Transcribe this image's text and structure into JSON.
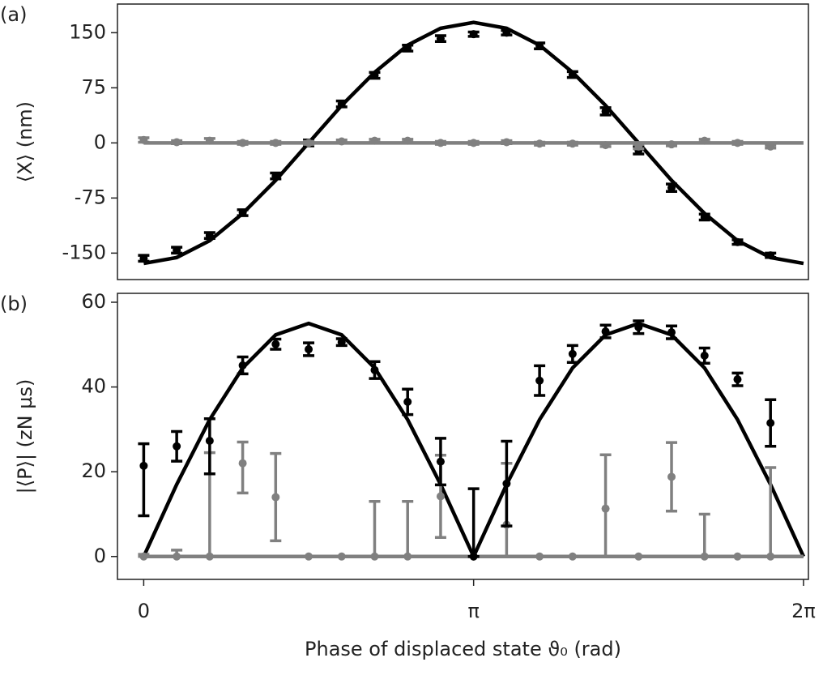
{
  "chart_data": [
    {
      "type": "errorbar",
      "panel_label": "(a)",
      "ylabel": "⟨X⟩ (nm)",
      "xlim": [
        -0.25,
        6.33
      ],
      "ylim": [
        -186,
        189
      ],
      "yticks": [
        150,
        75,
        0,
        -75,
        -150
      ],
      "series": [
        {
          "style": "line",
          "color": "#000000",
          "x": [
            0,
            0.3142,
            0.6283,
            0.9425,
            1.2566,
            1.5708,
            1.885,
            2.1991,
            2.5133,
            2.8274,
            3.1416,
            3.4558,
            3.7699,
            4.0841,
            4.3982,
            4.7124,
            5.0265,
            5.3407,
            5.6549,
            5.969,
            6.2832
          ],
          "values": [
            -164,
            -156,
            -133,
            -96,
            -51,
            0,
            51,
            96,
            133,
            156,
            164,
            156,
            133,
            96,
            51,
            0,
            -51,
            -96,
            -133,
            -156,
            -164
          ]
        },
        {
          "style": "line",
          "color": "#808080",
          "x": [
            0,
            6.2832
          ],
          "values": [
            0,
            0
          ]
        },
        {
          "style": "points",
          "color": "#000000",
          "x": [
            0,
            0.3142,
            0.6283,
            0.9425,
            1.2566,
            1.5708,
            1.885,
            2.1991,
            2.5133,
            2.8274,
            3.1416,
            3.4558,
            3.7699,
            4.0841,
            4.3982,
            4.7124,
            5.0265,
            5.3407,
            5.6549,
            5.969
          ],
          "values": [
            -157,
            -146,
            -126,
            -95,
            -45,
            0,
            53,
            92,
            129,
            142,
            148,
            150,
            132,
            93,
            43,
            -10,
            -61,
            -101,
            -135,
            -153
          ],
          "err_low": [
            4,
            4,
            4,
            4,
            4,
            4,
            4,
            4,
            4,
            4,
            3,
            3,
            4,
            4,
            5,
            5,
            5,
            4,
            3,
            3
          ],
          "err_high": [
            4,
            4,
            4,
            4,
            4,
            4,
            4,
            4,
            4,
            4,
            3,
            3,
            4,
            4,
            5,
            5,
            5,
            4,
            3,
            3
          ]
        },
        {
          "style": "points",
          "color": "#808080",
          "x": [
            0,
            0.3142,
            0.6283,
            0.9425,
            1.2566,
            1.5708,
            1.885,
            2.1991,
            2.5133,
            2.8274,
            3.1416,
            3.4558,
            3.7699,
            4.0841,
            4.3982,
            4.7124,
            5.0265,
            5.3407,
            5.6549,
            5.969
          ],
          "values": [
            4,
            1,
            3,
            0,
            0,
            0,
            2,
            3,
            3,
            0,
            0,
            1,
            -1,
            -1,
            -3,
            -5,
            -2,
            3,
            0,
            -5
          ],
          "err_low": [
            3,
            2,
            3,
            2,
            2,
            2,
            2,
            2,
            2,
            2,
            2,
            2,
            2,
            2,
            2,
            3,
            2,
            2,
            2,
            2
          ],
          "err_high": [
            3,
            2,
            3,
            2,
            2,
            2,
            2,
            2,
            2,
            2,
            2,
            2,
            2,
            2,
            2,
            3,
            2,
            2,
            2,
            2
          ]
        }
      ]
    },
    {
      "type": "errorbar",
      "panel_label": "(b)",
      "ylabel": "|⟨P⟩| (zN µs)",
      "xlabel": "Phase of displaced state ϑ₀ (rad)",
      "xlim": [
        -0.25,
        6.33
      ],
      "ylim": [
        -5.4,
        62.1
      ],
      "yticks": [
        0,
        20,
        40,
        60
      ],
      "xticks": [
        0,
        {
          "value": 3.1416,
          "label": "π"
        },
        {
          "value": 6.2832,
          "label": "2π"
        }
      ],
      "series": [
        {
          "style": "line",
          "color": "#000000",
          "x": [
            0,
            0.3142,
            0.6283,
            0.9425,
            1.2566,
            1.5708,
            1.885,
            2.1991,
            2.5133,
            2.8274,
            3.1416,
            3.4558,
            3.7699,
            4.0841,
            4.3982,
            4.7124,
            5.0265,
            5.3407,
            5.6549,
            5.969,
            6.2832
          ],
          "values": [
            0,
            17,
            32.3,
            44.5,
            52.3,
            55,
            52.3,
            44.5,
            32.3,
            17,
            0,
            17,
            32.3,
            44.5,
            52.3,
            55,
            52.3,
            44.5,
            32.3,
            17,
            0
          ]
        },
        {
          "style": "line",
          "color": "#808080",
          "x": [
            0,
            6.2832
          ],
          "values": [
            0,
            0
          ]
        },
        {
          "style": "points",
          "color": "#808080",
          "x": [
            0,
            0.3142,
            0.6283,
            0.9425,
            1.2566,
            1.5708,
            1.885,
            2.1991,
            2.5133,
            2.8274,
            3.1416,
            3.4558,
            3.7699,
            4.0841,
            4.3982,
            4.7124,
            5.0265,
            5.3407,
            5.6549,
            5.969
          ],
          "values": [
            0,
            0,
            0,
            22,
            14,
            0,
            0,
            0,
            0,
            14.2,
            0,
            7.5,
            0,
            0,
            11.3,
            0,
            18.8,
            0,
            0,
            0
          ],
          "err_low": [
            0,
            0,
            0,
            7,
            10.3,
            0,
            0,
            0,
            0,
            9.7,
            0,
            7.5,
            0,
            0,
            11.3,
            0,
            8.1,
            0,
            0,
            0
          ],
          "err_high": [
            0.5,
            1.5,
            24.5,
            5,
            10.3,
            0,
            0,
            13,
            13,
            9.7,
            0,
            14.5,
            0,
            0,
            12.7,
            0,
            8.1,
            10,
            0,
            21
          ]
        },
        {
          "style": "points",
          "color": "#000000",
          "x": [
            0,
            0.3142,
            0.6283,
            0.9425,
            1.2566,
            1.5708,
            1.885,
            2.1991,
            2.5133,
            2.8274,
            3.1416,
            3.4558,
            3.7699,
            4.0841,
            4.3982,
            4.7124,
            5.0265,
            5.3407,
            5.6549,
            5.969
          ],
          "values": [
            21.4,
            26,
            27.3,
            45.1,
            50.1,
            48.9,
            50.6,
            44,
            36.5,
            22.4,
            0,
            17.2,
            41.5,
            47.8,
            53.1,
            54.1,
            52.9,
            47.4,
            41.8,
            31.5
          ],
          "err_low": [
            11.8,
            3.5,
            7.8,
            2,
            1.2,
            1.5,
            0.8,
            2,
            3,
            5.5,
            0,
            10,
            3.5,
            2,
            1.5,
            1.5,
            1.5,
            1.8,
            1.5,
            5.5
          ],
          "err_high": [
            5.2,
            3.5,
            5.2,
            2,
            1.2,
            1.5,
            0.8,
            2,
            3,
            5.5,
            16,
            10,
            3.5,
            2,
            1.5,
            1.5,
            1.5,
            1.8,
            1.5,
            5.5
          ]
        }
      ]
    }
  ]
}
